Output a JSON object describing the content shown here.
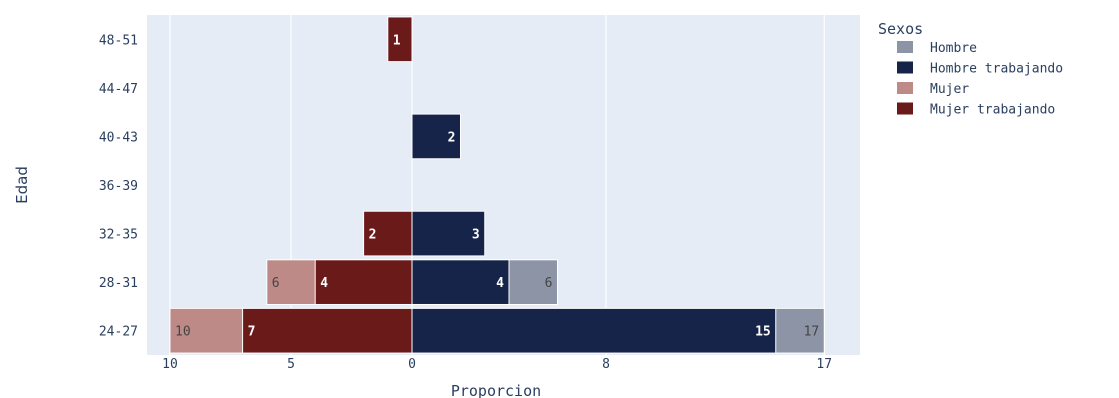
{
  "chart_data": {
    "type": "bar",
    "orientation": "horizontal",
    "barmode": "overlay",
    "title": "",
    "xlabel": "Proporcion",
    "ylabel": "Edad",
    "categories": [
      "24-27",
      "28-31",
      "32-35",
      "36-39",
      "40-43",
      "44-47",
      "48-51"
    ],
    "x_tick_values": [
      -10,
      -5,
      0,
      8,
      17
    ],
    "x_tick_labels": [
      "10",
      "5",
      "0",
      "8",
      "17"
    ],
    "xlim": [
      -10.5,
      18.0
    ],
    "grid": true,
    "legend_title": "Sexos",
    "legend_position": "top-right",
    "series": [
      {
        "name": "Hombre",
        "color": "#8c94a6",
        "side": "right",
        "values": [
          17,
          6,
          null,
          null,
          null,
          null,
          null
        ],
        "label_color": "#444444"
      },
      {
        "name": "Hombre trabajando",
        "color": "#17244a",
        "side": "right",
        "values": [
          15,
          4,
          3,
          null,
          2,
          null,
          null
        ],
        "label_color": "#ffffff"
      },
      {
        "name": "Mujer",
        "color": "#bd8a87",
        "side": "left",
        "values": [
          10,
          6,
          null,
          null,
          null,
          null,
          null
        ],
        "label_color": "#444444"
      },
      {
        "name": "Mujer trabajando",
        "color": "#6b1a1a",
        "side": "left",
        "values": [
          7,
          4,
          2,
          null,
          null,
          null,
          1
        ],
        "label_color": "#ffffff"
      }
    ]
  }
}
